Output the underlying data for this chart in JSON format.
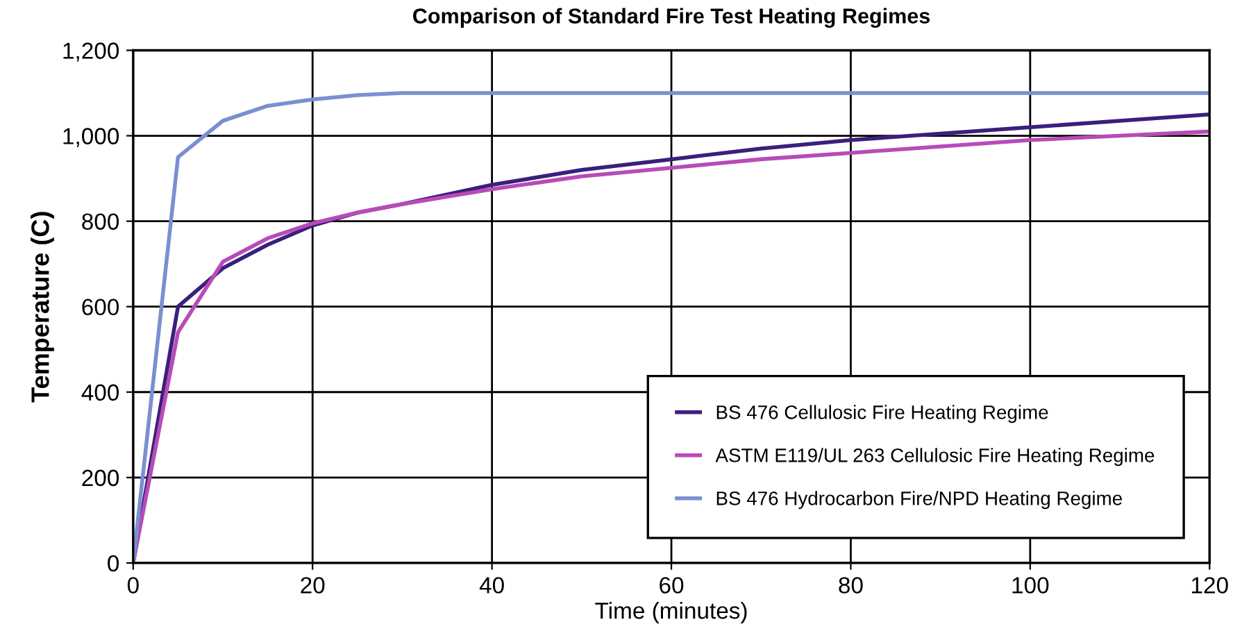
{
  "chart_data": {
    "type": "line",
    "title": "Comparison of Standard Fire Test Heating Regimes",
    "xlabel": "Time (minutes)",
    "ylabel": "Temperature (C)",
    "x": [
      0,
      5,
      10,
      15,
      20,
      25,
      30,
      40,
      50,
      60,
      70,
      80,
      90,
      100,
      110,
      120
    ],
    "series": [
      {
        "name": "BS 476 Cellulosic Fire Heating Regime",
        "color": "#3b1f7c",
        "values": [
          0,
          600,
          690,
          745,
          790,
          820,
          840,
          885,
          920,
          945,
          970,
          990,
          1005,
          1020,
          1035,
          1050
        ]
      },
      {
        "name": "ASTM E119/UL 263 Cellulosic Fire Heating Regime",
        "color": "#b84bb8",
        "values": [
          0,
          540,
          705,
          760,
          795,
          820,
          840,
          875,
          905,
          925,
          945,
          960,
          975,
          990,
          1000,
          1010
        ]
      },
      {
        "name": "BS 476 Hydrocarbon Fire/NPD Heating Regime",
        "color": "#7b8fd0",
        "values": [
          0,
          950,
          1035,
          1070,
          1085,
          1095,
          1100,
          1100,
          1100,
          1100,
          1100,
          1100,
          1100,
          1100,
          1100,
          1100
        ]
      }
    ],
    "xlim": [
      0,
      120
    ],
    "ylim": [
      0,
      1200
    ],
    "xticks": [
      0,
      20,
      40,
      60,
      80,
      100,
      120
    ],
    "yticks": [
      0,
      200,
      400,
      600,
      800,
      {
        "value": 1000,
        "label": "1,000"
      },
      {
        "value": 1200,
        "label": "1,200"
      }
    ],
    "grid": true,
    "legend": "bottom right",
    "marker": "none",
    "line_style": "solid"
  }
}
